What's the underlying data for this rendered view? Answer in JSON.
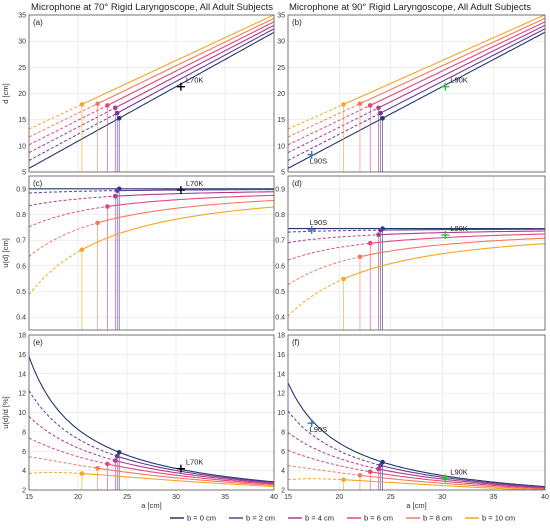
{
  "titles": {
    "left": "Microphone at 70° Rigid Laryngoscope, All Adult Subjects",
    "right": "Microphone at 90° Rigid Laryngoscope, All Adult Subjects"
  },
  "chart_data": [
    {
      "type": "line",
      "panel": "(a)",
      "col": 0,
      "row": 0,
      "xlabel": "",
      "ylabel": "d [cm]",
      "xlim": [
        15,
        40
      ],
      "ylim": [
        5,
        35
      ],
      "yticks": [
        5,
        10,
        15,
        20,
        25,
        30,
        35
      ],
      "metric": "d",
      "annotations": [
        {
          "label": "L70K",
          "x": 30.5,
          "y": 21.3,
          "marker": "+",
          "color": "#000000"
        }
      ]
    },
    {
      "type": "line",
      "panel": "(b)",
      "col": 1,
      "row": 0,
      "xlabel": "",
      "ylabel": "",
      "xlim": [
        15,
        40
      ],
      "ylim": [
        5,
        35
      ],
      "yticks": [
        5,
        10,
        15,
        20,
        25,
        30,
        35
      ],
      "metric": "d",
      "annotations": [
        {
          "label": "L90K",
          "x": 30.3,
          "y": 21.3,
          "marker": "+",
          "color": "#2fbf3a"
        },
        {
          "label": "L90S",
          "x": 17.3,
          "y": 8.3,
          "marker": "+",
          "color": "#3a78b8"
        }
      ]
    },
    {
      "type": "line",
      "panel": "(c)",
      "col": 0,
      "row": 1,
      "xlabel": "",
      "ylabel": "u(d) [cm]",
      "xlim": [
        15,
        40
      ],
      "ylim": [
        0.35,
        0.95
      ],
      "yticks": [
        0.4,
        0.5,
        0.6,
        0.7,
        0.8,
        0.9
      ],
      "metric": "u",
      "asym": 0.9,
      "annotations": [
        {
          "label": "L70K",
          "x": 30.5,
          "y": 0.895,
          "marker": "+",
          "color": "#000000"
        }
      ]
    },
    {
      "type": "line",
      "panel": "(d)",
      "col": 1,
      "row": 1,
      "xlabel": "",
      "ylabel": "",
      "xlim": [
        15,
        40
      ],
      "ylim": [
        0.35,
        0.95
      ],
      "yticks": [
        0.4,
        0.5,
        0.6,
        0.7,
        0.8,
        0.9
      ],
      "metric": "u",
      "asym": 0.745,
      "annotations": [
        {
          "label": "L90S",
          "x": 17.3,
          "y": 0.74,
          "marker": "+",
          "color": "#3a78b8"
        },
        {
          "label": "L90K",
          "x": 30.3,
          "y": 0.72,
          "marker": "+",
          "color": "#2fbf3a"
        }
      ]
    },
    {
      "type": "line",
      "panel": "(e)",
      "col": 0,
      "row": 2,
      "xlabel": "a [cm]",
      "ylabel": "u(d)/d [%]",
      "xlim": [
        15,
        40
      ],
      "ylim": [
        2,
        18
      ],
      "yticks": [
        2,
        4,
        6,
        8,
        10,
        12,
        14,
        16,
        18
      ],
      "metric": "r",
      "asym": 0.9,
      "annotations": [
        {
          "label": "L70K",
          "x": 30.5,
          "y": 4.2,
          "marker": "+",
          "color": "#000000"
        }
      ]
    },
    {
      "type": "line",
      "panel": "(f)",
      "col": 1,
      "row": 2,
      "xlabel": "a [cm]",
      "ylabel": "",
      "xlim": [
        15,
        40
      ],
      "ylim": [
        2,
        18
      ],
      "yticks": [
        2,
        4,
        6,
        8,
        10,
        12,
        14,
        16,
        18
      ],
      "metric": "r",
      "asym": 0.745,
      "annotations": [
        {
          "label": "L90S",
          "x": 17.3,
          "y": 8.9,
          "marker": "+",
          "color": "#3a78b8"
        },
        {
          "label": "L90K",
          "x": 30.3,
          "y": 3.2,
          "marker": "+",
          "color": "#2fbf3a"
        }
      ]
    }
  ],
  "xticks": [
    15,
    20,
    25,
    30,
    35,
    40
  ],
  "series": [
    {
      "name": "b = 0 cm",
      "b": 0,
      "a_min": 24.2,
      "color": "#1f3a6e"
    },
    {
      "name": "b = 2 cm",
      "b": 2,
      "a_min": 24.0,
      "color": "#6a3a9a"
    },
    {
      "name": "b = 4 cm",
      "b": 4,
      "a_min": 23.8,
      "color": "#b03c8c"
    },
    {
      "name": "b = 6 cm",
      "b": 6,
      "a_min": 23.0,
      "color": "#e0497a"
    },
    {
      "name": "b = 8 cm",
      "b": 8,
      "a_min": 22.0,
      "color": "#f47a5e"
    },
    {
      "name": "b = 10 cm",
      "b": 10,
      "a_min": 20.4,
      "color": "#f5a623"
    }
  ],
  "d_model": {
    "slope": 1.04,
    "intercept": -9.9
  }
}
